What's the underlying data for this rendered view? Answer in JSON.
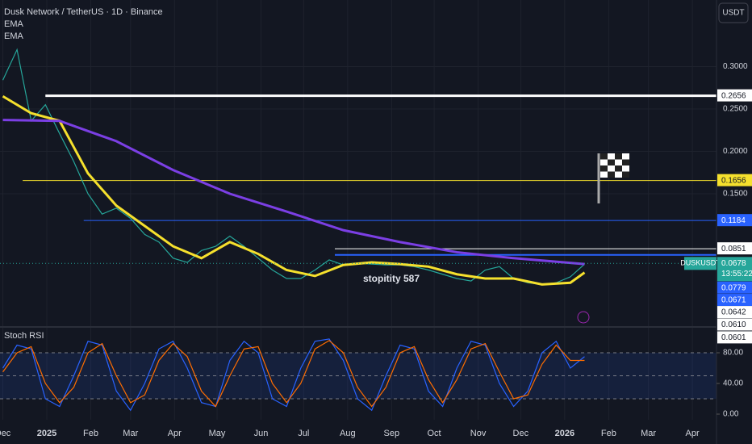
{
  "chart_data": {
    "type": "line",
    "title": "Dusk Network / TetherUS · 1D · Binance",
    "indicators": [
      "EMA",
      "EMA"
    ],
    "currency": "USDT",
    "xlim": [
      -2,
      503
    ],
    "xticks": [
      {
        "value": 0,
        "label": "Dec"
      },
      {
        "value": 31,
        "label": "2025"
      },
      {
        "value": 62,
        "label": "Feb"
      },
      {
        "value": 90,
        "label": "Mar"
      },
      {
        "value": 121,
        "label": "Apr"
      },
      {
        "value": 151,
        "label": "May"
      },
      {
        "value": 182,
        "label": "Jun"
      },
      {
        "value": 212,
        "label": "Jul"
      },
      {
        "value": 243,
        "label": "Aug"
      },
      {
        "value": 274,
        "label": "Sep"
      },
      {
        "value": 304,
        "label": "Oct"
      },
      {
        "value": 335,
        "label": "Nov"
      },
      {
        "value": 365,
        "label": "Dec"
      },
      {
        "value": 396,
        "label": "2026"
      },
      {
        "value": 427,
        "label": "Feb"
      },
      {
        "value": 455,
        "label": "Mar"
      },
      {
        "value": 486,
        "label": "Apr"
      }
    ],
    "ylim": [
      0,
      0.38
    ],
    "yticks": [
      {
        "value": 0.15,
        "label": "0.1500"
      },
      {
        "value": 0.2,
        "label": "0.2000"
      },
      {
        "value": 0.25,
        "label": "0.2500"
      },
      {
        "value": 0.3,
        "label": "0.3000"
      }
    ],
    "series": [
      {
        "color": "#26a69a",
        "width": 1.2,
        "x": [
          0,
          10,
          20,
          30,
          40,
          50,
          60,
          70,
          80,
          90,
          100,
          110,
          120,
          130,
          140,
          150,
          160,
          170,
          180,
          190,
          200,
          210,
          220,
          230,
          240,
          250,
          260,
          270,
          280,
          290,
          300,
          310,
          320,
          330,
          340,
          350,
          360,
          370,
          380,
          390,
          400,
          410
        ],
        "values": [
          0.284,
          0.32,
          0.236,
          0.255,
          0.221,
          0.188,
          0.15,
          0.126,
          0.133,
          0.121,
          0.102,
          0.093,
          0.074,
          0.069,
          0.083,
          0.088,
          0.1,
          0.088,
          0.074,
          0.06,
          0.05,
          0.05,
          0.06,
          0.072,
          0.066,
          0.068,
          0.067,
          0.066,
          0.066,
          0.064,
          0.06,
          0.055,
          0.05,
          0.047,
          0.06,
          0.064,
          0.05,
          0.045,
          0.043,
          0.045,
          0.052,
          0.067
        ]
      },
      {
        "color": "#f5e02d",
        "width": 3,
        "x": [
          0,
          20,
          40,
          60,
          80,
          100,
          120,
          140,
          160,
          180,
          200,
          220,
          240,
          260,
          280,
          300,
          320,
          340,
          360,
          380,
          400,
          410
        ],
        "values": [
          0.265,
          0.245,
          0.236,
          0.174,
          0.136,
          0.112,
          0.088,
          0.074,
          0.093,
          0.079,
          0.06,
          0.053,
          0.066,
          0.069,
          0.067,
          0.064,
          0.055,
          0.05,
          0.05,
          0.043,
          0.045,
          0.057
        ]
      },
      {
        "color": "#7b3fe4",
        "width": 3,
        "x": [
          0,
          40,
          80,
          120,
          160,
          200,
          240,
          280,
          320,
          360,
          410
        ],
        "values": [
          0.237,
          0.236,
          0.212,
          0.178,
          0.15,
          0.129,
          0.107,
          0.093,
          0.081,
          0.074,
          0.067
        ]
      }
    ],
    "levels": [
      {
        "value": 0.2656,
        "label": "0.2656",
        "color": "#ffffff",
        "from": 30,
        "width": 3
      },
      {
        "value": 0.1656,
        "label": "0.1656",
        "color": "#f5e02d",
        "from": 14,
        "width": 1
      },
      {
        "value": 0.1184,
        "label": "0.1184",
        "color": "#2962ff",
        "from": 57,
        "width": 1
      },
      {
        "value": 0.0851,
        "label": "0.0851",
        "color": "#ffffff",
        "from": 234,
        "width": 1
      },
      {
        "value": 0.0779,
        "label": "0.0779",
        "color": "#2962ff",
        "from": 234,
        "width": 2
      },
      {
        "value": 0.0671,
        "label": "0.0671",
        "color": "#2962ff"
      },
      {
        "value": 0.0642,
        "label": "0.0642",
        "color": "#ffffff"
      },
      {
        "value": 0.061,
        "label": "0.0610",
        "color": "#ffffff"
      },
      {
        "value": 0.0601,
        "label": "0.0601",
        "color": "#ffffff"
      }
    ],
    "last_price": {
      "symbol": "DUSKUSDT",
      "value": 0.0678,
      "label": "0.0678",
      "countdown": "13:55:22"
    },
    "annotation": "stopitity 587",
    "stoch_rsi": {
      "name": "Stoch RSI",
      "ylim": [
        0,
        100
      ],
      "yticks": [
        {
          "value": 0,
          "label": "0.00"
        },
        {
          "value": 40,
          "label": "40.00"
        },
        {
          "value": 80,
          "label": "80.00"
        }
      ],
      "x": [
        0,
        10,
        20,
        30,
        40,
        50,
        60,
        70,
        80,
        90,
        100,
        110,
        120,
        130,
        140,
        150,
        160,
        170,
        180,
        190,
        200,
        210,
        220,
        230,
        240,
        250,
        260,
        270,
        280,
        290,
        300,
        310,
        320,
        330,
        340,
        350,
        360,
        370,
        380,
        390,
        400,
        410
      ],
      "series": [
        {
          "color": "#2962ff",
          "values": [
            60,
            90,
            85,
            20,
            10,
            50,
            95,
            90,
            30,
            5,
            40,
            85,
            95,
            60,
            15,
            10,
            70,
            95,
            80,
            20,
            10,
            60,
            95,
            98,
            70,
            20,
            5,
            50,
            90,
            85,
            30,
            10,
            60,
            95,
            90,
            40,
            10,
            30,
            80,
            95,
            60,
            75
          ]
        },
        {
          "color": "#ff6d00",
          "values": [
            55,
            80,
            88,
            40,
            15,
            35,
            80,
            92,
            50,
            15,
            25,
            70,
            92,
            75,
            30,
            10,
            50,
            85,
            88,
            40,
            15,
            40,
            85,
            96,
            80,
            35,
            10,
            35,
            80,
            88,
            45,
            15,
            45,
            85,
            92,
            55,
            20,
            25,
            65,
            90,
            70,
            70
          ]
        }
      ]
    }
  }
}
